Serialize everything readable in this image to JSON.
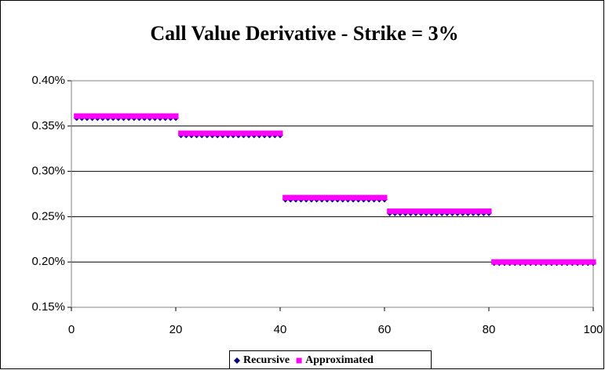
{
  "chart_data": {
    "type": "scatter",
    "title": "Call Value Derivative - Strike = 3%",
    "x": [
      1,
      2,
      3,
      4,
      5,
      6,
      7,
      8,
      9,
      10,
      11,
      12,
      13,
      14,
      15,
      16,
      17,
      18,
      19,
      20,
      21,
      22,
      23,
      24,
      25,
      26,
      27,
      28,
      29,
      30,
      31,
      32,
      33,
      34,
      35,
      36,
      37,
      38,
      39,
      40,
      41,
      42,
      43,
      44,
      45,
      46,
      47,
      48,
      49,
      50,
      51,
      52,
      53,
      54,
      55,
      56,
      57,
      58,
      59,
      60,
      61,
      62,
      63,
      64,
      65,
      66,
      67,
      68,
      69,
      70,
      71,
      72,
      73,
      74,
      75,
      76,
      77,
      78,
      79,
      80,
      81,
      82,
      83,
      84,
      85,
      86,
      87,
      88,
      89,
      90,
      91,
      92,
      93,
      94,
      95,
      96,
      97,
      98,
      99,
      100
    ],
    "series": [
      {
        "name": "Recursive",
        "color": "#000080",
        "marker": "diamond",
        "values": [
          0.359,
          0.359,
          0.359,
          0.359,
          0.359,
          0.359,
          0.359,
          0.359,
          0.359,
          0.359,
          0.359,
          0.359,
          0.359,
          0.359,
          0.359,
          0.359,
          0.359,
          0.359,
          0.359,
          0.359,
          0.34,
          0.34,
          0.34,
          0.34,
          0.34,
          0.34,
          0.34,
          0.34,
          0.34,
          0.34,
          0.34,
          0.34,
          0.34,
          0.34,
          0.34,
          0.34,
          0.34,
          0.34,
          0.34,
          0.34,
          0.269,
          0.269,
          0.269,
          0.269,
          0.269,
          0.269,
          0.269,
          0.269,
          0.269,
          0.269,
          0.269,
          0.269,
          0.269,
          0.269,
          0.269,
          0.269,
          0.269,
          0.269,
          0.269,
          0.269,
          0.254,
          0.254,
          0.254,
          0.254,
          0.254,
          0.254,
          0.254,
          0.254,
          0.254,
          0.254,
          0.254,
          0.254,
          0.254,
          0.254,
          0.254,
          0.254,
          0.254,
          0.254,
          0.254,
          0.254,
          0.199,
          0.199,
          0.199,
          0.199,
          0.199,
          0.199,
          0.199,
          0.199,
          0.199,
          0.199,
          0.199,
          0.199,
          0.199,
          0.199,
          0.199,
          0.199,
          0.199,
          0.199,
          0.199,
          0.199
        ]
      },
      {
        "name": "Approximated",
        "color": "#ff00ff",
        "marker": "square",
        "values": [
          0.361,
          0.361,
          0.361,
          0.361,
          0.361,
          0.361,
          0.361,
          0.361,
          0.361,
          0.361,
          0.361,
          0.361,
          0.361,
          0.361,
          0.361,
          0.361,
          0.361,
          0.361,
          0.361,
          0.361,
          0.342,
          0.342,
          0.342,
          0.342,
          0.342,
          0.342,
          0.342,
          0.342,
          0.342,
          0.342,
          0.342,
          0.342,
          0.342,
          0.342,
          0.342,
          0.342,
          0.342,
          0.342,
          0.342,
          0.342,
          0.271,
          0.271,
          0.271,
          0.271,
          0.271,
          0.271,
          0.271,
          0.271,
          0.271,
          0.271,
          0.271,
          0.271,
          0.271,
          0.271,
          0.271,
          0.271,
          0.271,
          0.271,
          0.271,
          0.271,
          0.256,
          0.256,
          0.256,
          0.256,
          0.256,
          0.256,
          0.256,
          0.256,
          0.256,
          0.256,
          0.256,
          0.256,
          0.256,
          0.256,
          0.256,
          0.256,
          0.256,
          0.256,
          0.256,
          0.256,
          0.2,
          0.2,
          0.2,
          0.2,
          0.2,
          0.2,
          0.2,
          0.2,
          0.2,
          0.2,
          0.2,
          0.2,
          0.2,
          0.2,
          0.2,
          0.2,
          0.2,
          0.2,
          0.2,
          0.2
        ]
      }
    ],
    "xlim": [
      0,
      100
    ],
    "xticks": [
      0,
      20,
      40,
      60,
      80,
      100
    ],
    "ylim": [
      0.15,
      0.4
    ],
    "yticks": [
      {
        "value": 0.15,
        "label": "0.15%"
      },
      {
        "value": 0.2,
        "label": "0.20%"
      },
      {
        "value": 0.25,
        "label": "0.25%"
      },
      {
        "value": 0.3,
        "label": "0.30%"
      },
      {
        "value": 0.35,
        "label": "0.35%"
      },
      {
        "value": 0.4,
        "label": "0.40%"
      }
    ],
    "grid": true,
    "legend": "bottom"
  }
}
